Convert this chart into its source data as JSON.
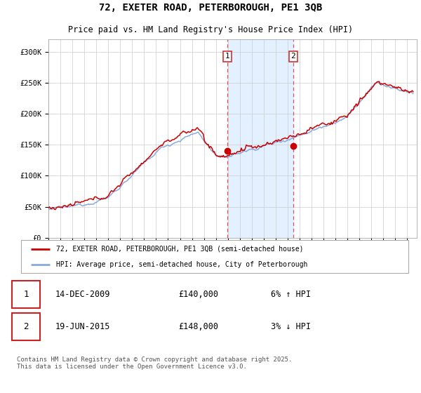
{
  "title": "72, EXETER ROAD, PETERBOROUGH, PE1 3QB",
  "subtitle": "Price paid vs. HM Land Registry's House Price Index (HPI)",
  "ylabel_ticks": [
    "£0",
    "£50K",
    "£100K",
    "£150K",
    "£200K",
    "£250K",
    "£300K"
  ],
  "ytick_values": [
    0,
    50000,
    100000,
    150000,
    200000,
    250000,
    300000
  ],
  "ylim": [
    0,
    320000
  ],
  "xlim_start": 1995.0,
  "xlim_end": 2025.8,
  "purchase1_x": 2009.96,
  "purchase1_y": 140000,
  "purchase2_x": 2015.47,
  "purchase2_y": 148000,
  "purchase1_date": "14-DEC-2009",
  "purchase1_price": "£140,000",
  "purchase1_hpi": "6% ↑ HPI",
  "purchase2_date": "19-JUN-2015",
  "purchase2_price": "£148,000",
  "purchase2_hpi": "3% ↓ HPI",
  "legend1_label": "72, EXETER ROAD, PETERBOROUGH, PE1 3QB (semi-detached house)",
  "legend2_label": "HPI: Average price, semi-detached house, City of Peterborough",
  "footer": "Contains HM Land Registry data © Crown copyright and database right 2025.\nThis data is licensed under the Open Government Licence v3.0.",
  "line_color_property": "#cc0000",
  "line_color_hpi": "#88aadd",
  "shaded_region_color": "#ddeeff",
  "background_color": "#ffffff",
  "grid_color": "#cccccc"
}
